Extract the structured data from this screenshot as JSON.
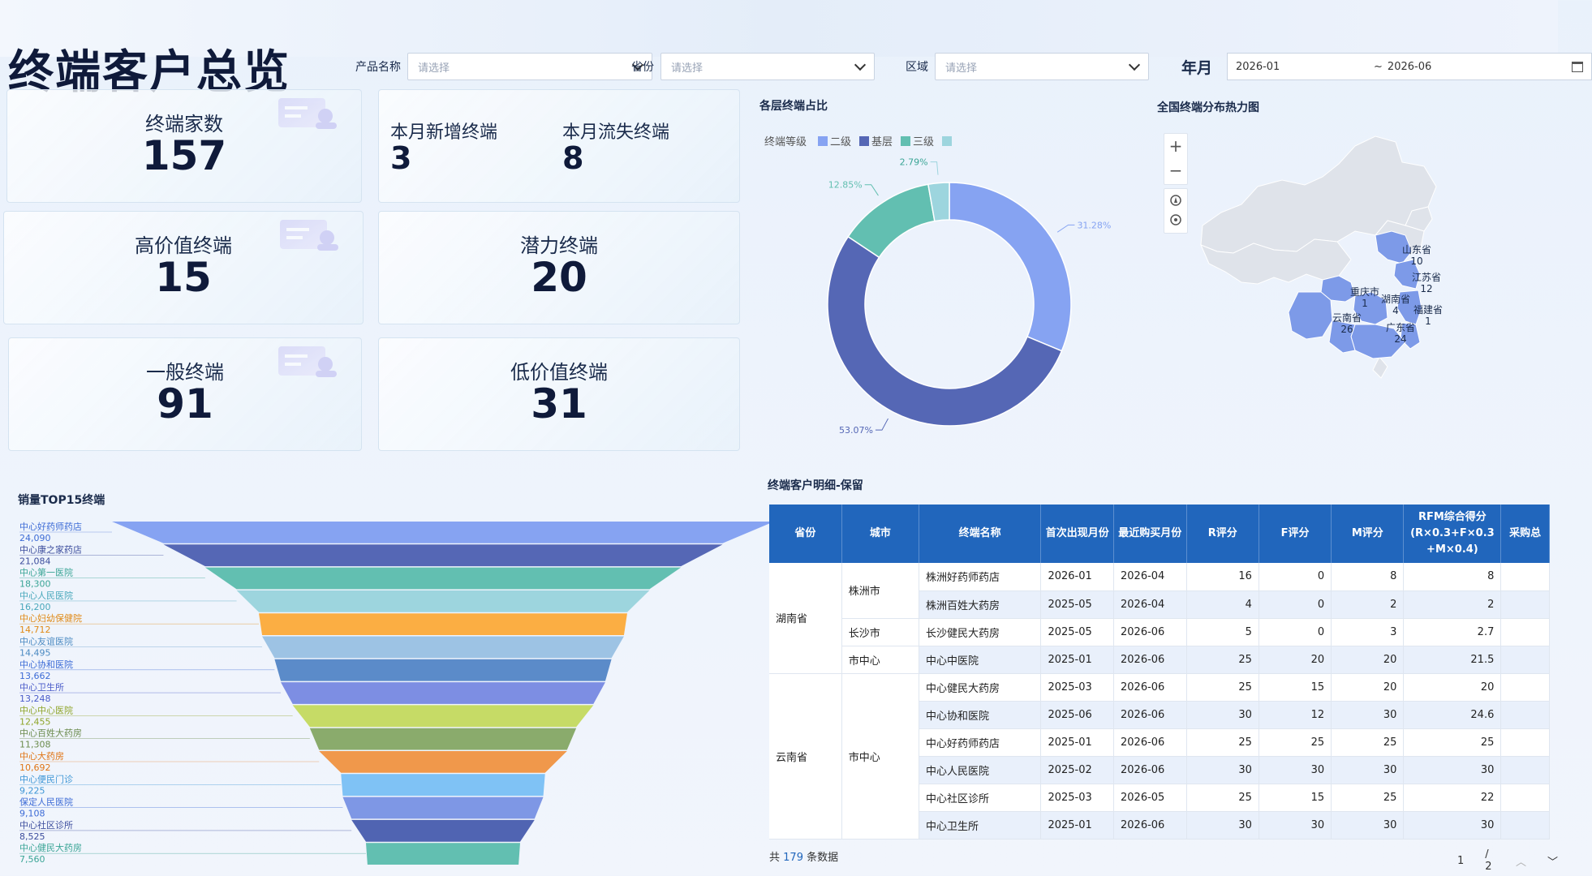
{
  "title": "终端客户总览",
  "filters": {
    "product": {
      "label": "产品名称",
      "placeholder": "请选择"
    },
    "province": {
      "label": "省份",
      "placeholder": "请选择"
    },
    "region": {
      "label": "区域",
      "placeholder": "请选择"
    },
    "month": {
      "label": "年月",
      "start": "2026-01",
      "separator": "~",
      "end": "2026-06"
    }
  },
  "kpi": {
    "total": {
      "label": "终端家数",
      "value": "157"
    },
    "new": {
      "label": "本月新增终端",
      "value": "3"
    },
    "lost": {
      "label": "本月流失终端",
      "value": "8"
    },
    "high": {
      "label": "高价值终端",
      "value": "15"
    },
    "potential": {
      "label": "潜力终端",
      "value": "20"
    },
    "general": {
      "label": "一般终端",
      "value": "91"
    },
    "low": {
      "label": "低价值终端",
      "value": "31"
    }
  },
  "sections": {
    "donut": "各层终端占比",
    "map": "全国终端分布热力图",
    "funnel": "销量TOP15终端",
    "table": "终端客户明细-保留"
  },
  "colors": {
    "accent": "#2166bc",
    "lvl2": "#86a3f2",
    "base": "#5567b5",
    "lvl3": "#62bfb1",
    "other": "#9dd5de"
  },
  "chart_data": [
    {
      "type": "pie",
      "title": "各层终端占比",
      "legend_title": "终端等级",
      "legend_placement": "top-left",
      "slices": [
        {
          "name": "二级",
          "value": 31.28,
          "label": "31.28%",
          "color": "#86a3f2"
        },
        {
          "name": "基层",
          "value": 53.07,
          "label": "53.07%",
          "color": "#5567b5"
        },
        {
          "name": "三级",
          "value": 12.85,
          "label": "12.85%",
          "color": "#62bfb1"
        },
        {
          "name": "",
          "value": 2.79,
          "label": "2.79%",
          "color": "#9dd5de"
        }
      ]
    },
    {
      "type": "bar",
      "subtype": "funnel",
      "title": "销量TOP15终端",
      "categories": [
        "中心好药师药店",
        "中心康之家药店",
        "中心第一医院",
        "中心人民医院",
        "中心妇幼保健院",
        "中心友谊医院",
        "中心协和医院",
        "中心卫生所",
        "中心中心医院",
        "中心百姓大药房",
        "中心大药房",
        "中心便民门诊",
        "保定人民医院",
        "中心社区诊所",
        "中心健民大药房"
      ],
      "values": [
        24090,
        21084,
        18300,
        16200,
        14712,
        14495,
        13662,
        13248,
        12455,
        11308,
        10692,
        9225,
        9108,
        8525,
        7560
      ],
      "value_labels": [
        "24,090",
        "21,084",
        "18,300",
        "16,200",
        "14,712",
        "14,495",
        "13,662",
        "13,248",
        "12,455",
        "11,308",
        "10,692",
        "9,225",
        "9,108",
        "8,525",
        "7,560"
      ],
      "colors": [
        "#86a3f2",
        "#5567b5",
        "#62bfb1",
        "#9dd5de",
        "#fbae43",
        "#9dc3e4",
        "#5b8bc9",
        "#7d8ee3",
        "#c6db66",
        "#8aab6c",
        "#f0984b",
        "#7fc2f5",
        "#7e97e5",
        "#5064b2",
        "#62bfb1"
      ],
      "label_colors": [
        "#3c6bd6",
        "#3c4d9d",
        "#3aa596",
        "#48a7bb",
        "#e08a17",
        "#4b8ac2",
        "#3c6bd6",
        "#4a5bc9",
        "#8fa52a",
        "#6c8c4e",
        "#e07414",
        "#3d96d6",
        "#3c6bd6",
        "#3c4d9d",
        "#3aa596"
      ]
    }
  ],
  "map": {
    "labels": [
      {
        "name": "山东省",
        "value": "10"
      },
      {
        "name": "江苏省",
        "value": "12"
      },
      {
        "name": "重庆市",
        "value": "1"
      },
      {
        "name": "湖南省",
        "value": "4"
      },
      {
        "name": "福建省",
        "value": "1"
      },
      {
        "name": "云南省",
        "value": "26"
      },
      {
        "name": "广东省",
        "value": "24"
      }
    ],
    "zoom_in": "+",
    "zoom_out": "−"
  },
  "table": {
    "headers": [
      "省份",
      "城市",
      "终端名称",
      "首次出现月份",
      "最近购买月份",
      "R评分",
      "F评分",
      "M评分",
      "RFM综合得分 (R×0.3+F×0.3 +M×0.4)",
      "采购总"
    ],
    "rows": [
      {
        "name": "株洲好药师药店",
        "first": "2026-01",
        "last": "2026-04",
        "r": "16",
        "f": "0",
        "m": "8",
        "rfm": "8"
      },
      {
        "name": "株洲百姓大药房",
        "first": "2025-05",
        "last": "2026-04",
        "r": "4",
        "f": "0",
        "m": "2",
        "rfm": "2"
      },
      {
        "name": "长沙健民大药房",
        "first": "2025-05",
        "last": "2026-06",
        "r": "5",
        "f": "0",
        "m": "3",
        "rfm": "2.7"
      },
      {
        "name": "中心中医院",
        "first": "2025-01",
        "last": "2026-06",
        "r": "25",
        "f": "20",
        "m": "20",
        "rfm": "21.5"
      },
      {
        "name": "中心健民大药房",
        "first": "2025-03",
        "last": "2026-06",
        "r": "25",
        "f": "15",
        "m": "20",
        "rfm": "20"
      },
      {
        "name": "中心协和医院",
        "first": "2025-06",
        "last": "2026-06",
        "r": "30",
        "f": "12",
        "m": "30",
        "rfm": "24.6"
      },
      {
        "name": "中心好药师药店",
        "first": "2025-01",
        "last": "2026-06",
        "r": "25",
        "f": "25",
        "m": "25",
        "rfm": "25"
      },
      {
        "name": "中心人民医院",
        "first": "2025-02",
        "last": "2026-06",
        "r": "30",
        "f": "30",
        "m": "30",
        "rfm": "30"
      },
      {
        "name": "中心社区诊所",
        "first": "2025-03",
        "last": "2026-05",
        "r": "25",
        "f": "15",
        "m": "25",
        "rfm": "22"
      },
      {
        "name": "中心卫生所",
        "first": "2025-01",
        "last": "2026-06",
        "r": "30",
        "f": "30",
        "m": "30",
        "rfm": "30"
      }
    ],
    "merged": {
      "hunan": "湖南省",
      "zhuzhou": "株洲市",
      "changsha": "长沙市",
      "shizhongxin1": "市中心",
      "yunnan": "云南省",
      "shizhongxin2": "市中心"
    },
    "footer": {
      "prefix": "共",
      "count": "179",
      "suffix": "条数据"
    },
    "pager": {
      "page": "1",
      "total": "/ 2"
    }
  }
}
